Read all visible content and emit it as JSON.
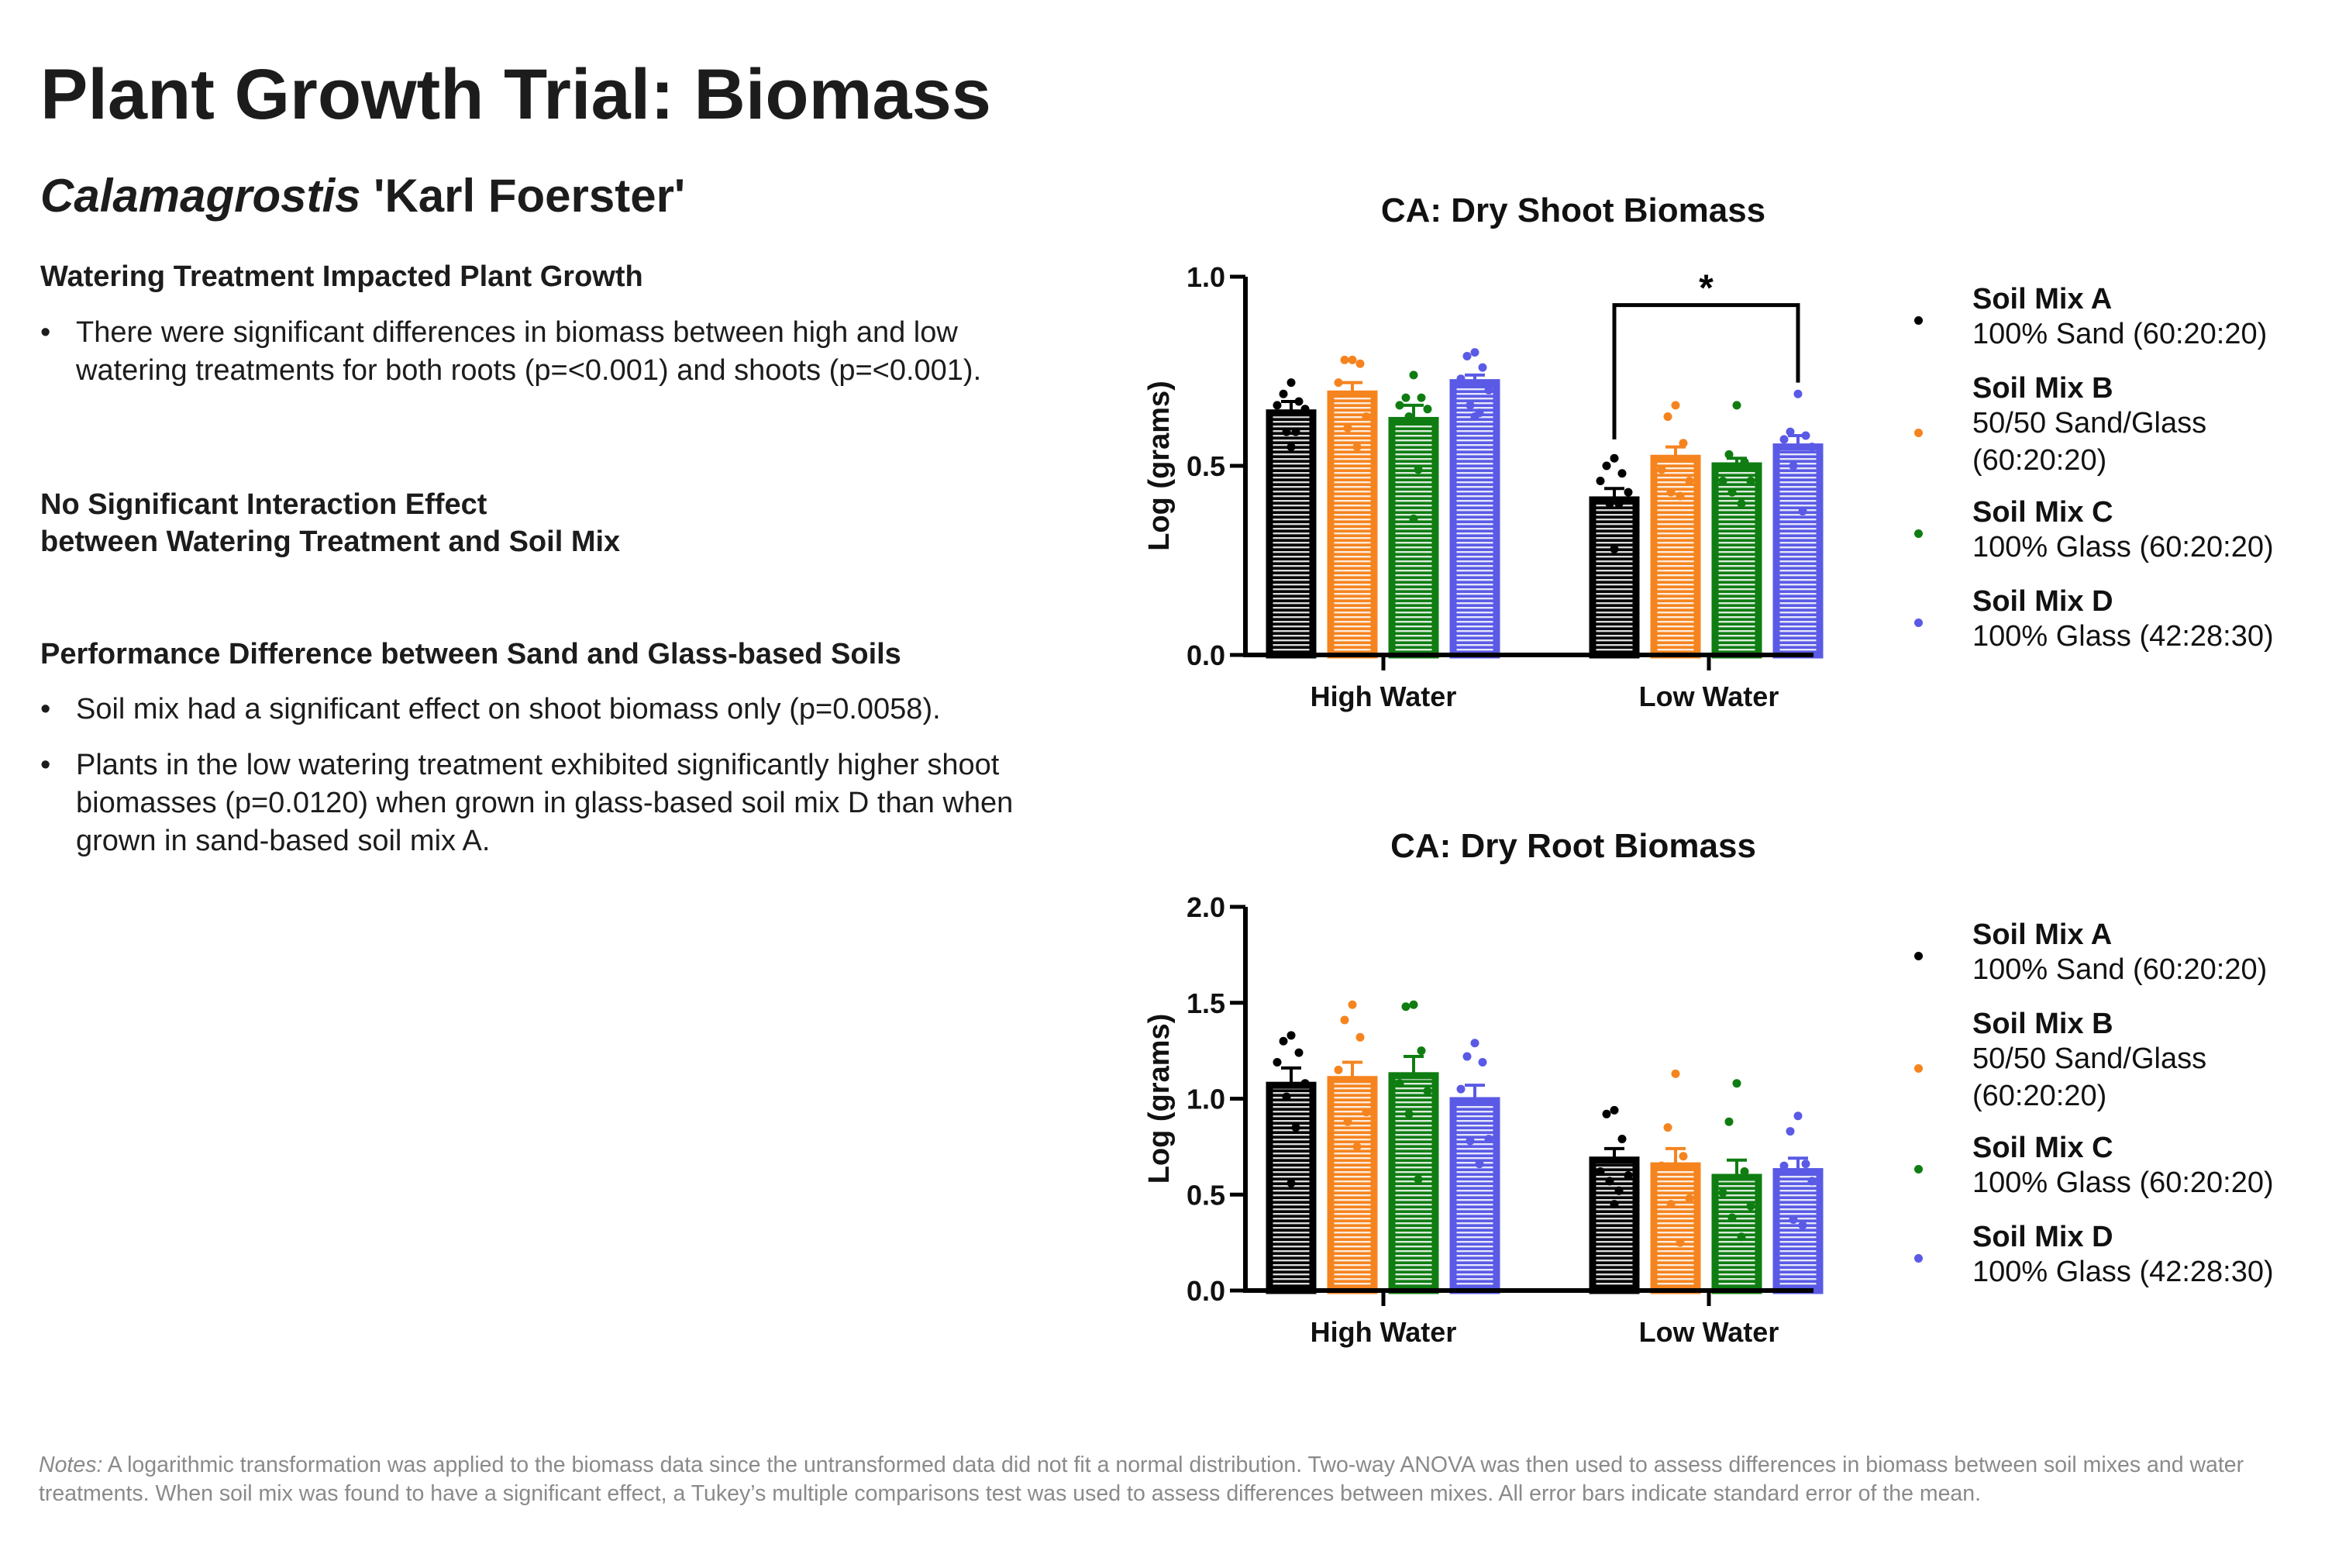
{
  "header": {
    "title": "Plant Growth Trial: Biomass",
    "subtitle_italic": "Calamagrostis",
    "subtitle_rest": " 'Karl Foerster'"
  },
  "sections": [
    {
      "heading": "Watering Treatment Impacted Plant Growth",
      "bullets": [
        "There were significant differences in biomass between high and low watering treatments for both roots (p=<0.001) and shoots (p=<0.001)."
      ]
    },
    {
      "heading_line1": "No Significant Interaction Effect",
      "heading_line2": "between Watering Treatment and Soil Mix"
    },
    {
      "heading": "Performance Difference between Sand and Glass-based Soils",
      "bullets": [
        "Soil mix had a significant effect on shoot biomass only (p=0.0058).",
        "Plants in the low watering treatment exhibited significantly higher shoot biomasses (p=0.0120) when grown in glass-based soil mix D than when grown in sand-based soil mix A."
      ]
    }
  ],
  "bullet_char": "•",
  "notes": {
    "label": "Notes:",
    "text": " A logarithmic transformation was applied to the biomass data since the untransformed data did not fit a normal distribution. Two-way ANOVA was then used to assess differences in biomass between soil mixes and water treatments. When soil mix was found to have a significant effect, a Tukey’s multiple comparisons test was used to assess differences between mixes. All error bars indicate standard error of the mean."
  },
  "legend": [
    {
      "name": "Soil Mix A",
      "desc": "100% Sand (60:20:20)",
      "color": "#000000"
    },
    {
      "name": "Soil Mix B",
      "desc": "50/50 Sand/Glass (60:20:20)",
      "color": "#f5841f"
    },
    {
      "name": "Soil Mix C",
      "desc": "100% Glass (60:20:20)",
      "color": "#0f7d12"
    },
    {
      "name": "Soil Mix D",
      "desc": "100% Glass (42:28:30)",
      "color": "#5a5ae6"
    }
  ],
  "chart_data": [
    {
      "type": "bar",
      "title": "CA: Dry Shoot Biomass",
      "xlabel": "",
      "ylabel": "Log (grams)",
      "ylim": [
        0,
        1.0
      ],
      "yticks": [
        "0.0",
        "0.5",
        "1.0"
      ],
      "ytick_values": [
        0,
        0.5,
        1.0
      ],
      "categories": [
        "High Water",
        "Low Water"
      ],
      "grid": false,
      "legend_position": "right",
      "series": [
        {
          "name": "Soil Mix A",
          "values": [
            0.64,
            0.41
          ],
          "sem": [
            0.03,
            0.03
          ],
          "points": [
            [
              0.72,
              0.69,
              0.67,
              0.66,
              0.65,
              0.59,
              0.59,
              0.55
            ],
            [
              0.52,
              0.5,
              0.48,
              0.46,
              0.43,
              0.4,
              0.4,
              0.28
            ]
          ]
        },
        {
          "name": "Soil Mix B",
          "values": [
            0.69,
            0.52
          ],
          "sem": [
            0.03,
            0.03
          ],
          "points": [
            [
              0.78,
              0.78,
              0.77,
              0.72,
              0.63,
              0.6,
              0.55
            ],
            [
              0.66,
              0.63,
              0.56,
              0.49,
              0.46,
              0.43,
              0.42
            ]
          ]
        },
        {
          "name": "Soil Mix C",
          "values": [
            0.62,
            0.5
          ],
          "sem": [
            0.04,
            0.02
          ],
          "points": [
            [
              0.74,
              0.68,
              0.68,
              0.66,
              0.65,
              0.63,
              0.49,
              0.36
            ],
            [
              0.66,
              0.53,
              0.51,
              0.46,
              0.46,
              0.43,
              0.4
            ]
          ]
        },
        {
          "name": "Soil Mix D",
          "values": [
            0.72,
            0.55
          ],
          "sem": [
            0.02,
            0.03
          ],
          "points": [
            [
              0.8,
              0.79,
              0.76,
              0.73,
              0.7,
              0.66,
              0.64,
              0.63
            ],
            [
              0.69,
              0.59,
              0.58,
              0.57,
              0.55,
              0.5,
              0.38
            ]
          ]
        }
      ],
      "annotations": [
        {
          "type": "significance-bracket",
          "from": "Soil Mix A (Low Water)",
          "to": "Soil Mix D (Low Water)",
          "label": "*"
        }
      ]
    },
    {
      "type": "bar",
      "title": "CA: Dry Root Biomass",
      "xlabel": "",
      "ylabel": "Log (grams)",
      "ylim": [
        0,
        2.0
      ],
      "yticks": [
        "0.0",
        "0.5",
        "1.0",
        "1.5",
        "2.0"
      ],
      "ytick_values": [
        0,
        0.5,
        1.0,
        1.5,
        2.0
      ],
      "categories": [
        "High Water",
        "Low Water"
      ],
      "grid": false,
      "legend_position": "right",
      "series": [
        {
          "name": "Soil Mix A",
          "values": [
            1.07,
            0.68
          ],
          "sem": [
            0.09,
            0.06
          ],
          "points": [
            [
              1.33,
              1.3,
              1.24,
              1.19,
              1.08,
              1.01,
              0.85,
              0.56
            ],
            [
              0.94,
              0.92,
              0.79,
              0.62,
              0.6,
              0.57,
              0.52,
              0.45
            ]
          ]
        },
        {
          "name": "Soil Mix B",
          "values": [
            1.1,
            0.65
          ],
          "sem": [
            0.09,
            0.09
          ],
          "points": [
            [
              1.49,
              1.41,
              1.32,
              1.15,
              0.93,
              0.88,
              0.75
            ],
            [
              1.13,
              0.85,
              0.7,
              0.65,
              0.48,
              0.45,
              0.25
            ]
          ]
        },
        {
          "name": "Soil Mix C",
          "values": [
            1.12,
            0.59
          ],
          "sem": [
            0.1,
            0.09
          ],
          "points": [
            [
              1.49,
              1.48,
              1.25,
              1.08,
              1.04,
              0.92,
              0.58
            ],
            [
              1.08,
              0.88,
              0.62,
              0.51,
              0.44,
              0.38,
              0.28
            ]
          ]
        },
        {
          "name": "Soil Mix D",
          "values": [
            0.99,
            0.62
          ],
          "sem": [
            0.08,
            0.07
          ],
          "points": [
            [
              1.29,
              1.22,
              1.19,
              1.05,
              0.79,
              0.78,
              0.66
            ],
            [
              0.91,
              0.83,
              0.66,
              0.65,
              0.57,
              0.37,
              0.34
            ]
          ]
        }
      ]
    }
  ]
}
